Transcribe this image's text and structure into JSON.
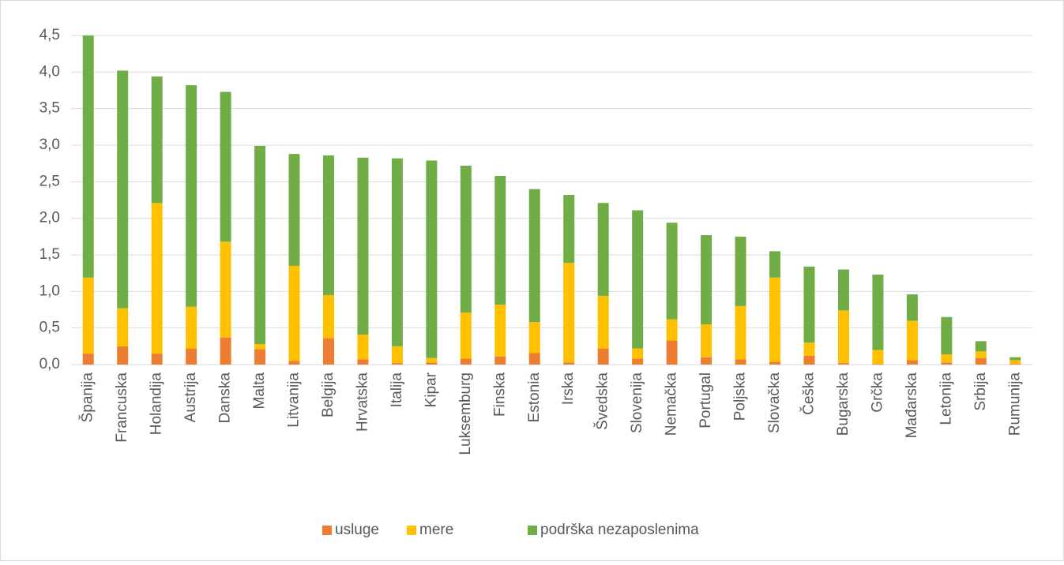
{
  "chart_data": {
    "type": "stacked_bar",
    "categories": [
      "Španija",
      "Francuska",
      "Holandija",
      "Austrija",
      "Danska",
      "Malta",
      "Litvanija",
      "Belgija",
      "Hrvatska",
      "Italija",
      "Kipar",
      "Luksemburg",
      "Finska",
      "Estonia",
      "Irska",
      "Švedska",
      "Slovenija",
      "Nemačka",
      "Portugal",
      "Poljska",
      "Slovačka",
      "Češka",
      "Bugarska",
      "Grčka",
      "Mađarska",
      "Letonija",
      "Srbija",
      "Rumunija"
    ],
    "series": [
      {
        "name": "usluge",
        "color": "#ed7d31",
        "values": [
          0.15,
          0.25,
          0.15,
          0.22,
          0.37,
          0.21,
          0.05,
          0.36,
          0.07,
          0.02,
          0.03,
          0.08,
          0.11,
          0.16,
          0.03,
          0.22,
          0.08,
          0.33,
          0.1,
          0.07,
          0.04,
          0.12,
          0.02,
          0.01,
          0.06,
          0.03,
          0.09,
          0.01
        ]
      },
      {
        "name": "mere",
        "color": "#ffc000",
        "values": [
          1.04,
          0.52,
          2.06,
          0.57,
          1.31,
          0.07,
          1.3,
          0.59,
          0.34,
          0.23,
          0.06,
          0.63,
          0.71,
          0.42,
          1.36,
          0.72,
          0.14,
          0.29,
          0.45,
          0.73,
          1.15,
          0.18,
          0.72,
          0.19,
          0.54,
          0.11,
          0.09,
          0.05
        ]
      },
      {
        "name": "podrška nezaposlenima",
        "color": "#70ad47",
        "values": [
          3.31,
          3.25,
          1.73,
          3.03,
          2.05,
          2.71,
          1.53,
          1.91,
          2.42,
          2.57,
          2.7,
          2.01,
          1.76,
          1.82,
          0.93,
          1.27,
          1.89,
          1.32,
          1.22,
          0.95,
          0.36,
          1.04,
          0.56,
          1.03,
          0.36,
          0.51,
          0.14,
          0.04
        ]
      }
    ],
    "ylim": [
      0,
      4.5
    ],
    "yticks": [
      {
        "value": 0,
        "label": "0,0"
      },
      {
        "value": 0.5,
        "label": "0,5"
      },
      {
        "value": 1,
        "label": "1,0"
      },
      {
        "value": 1.5,
        "label": "1,5"
      },
      {
        "value": 2,
        "label": "2,0"
      },
      {
        "value": 2.5,
        "label": "2,5"
      },
      {
        "value": 3,
        "label": "3,0"
      },
      {
        "value": 3.5,
        "label": "3,5"
      },
      {
        "value": 4,
        "label": "4,0"
      },
      {
        "value": 4.5,
        "label": "4,5"
      }
    ],
    "grid": true,
    "legend": "bottom"
  }
}
